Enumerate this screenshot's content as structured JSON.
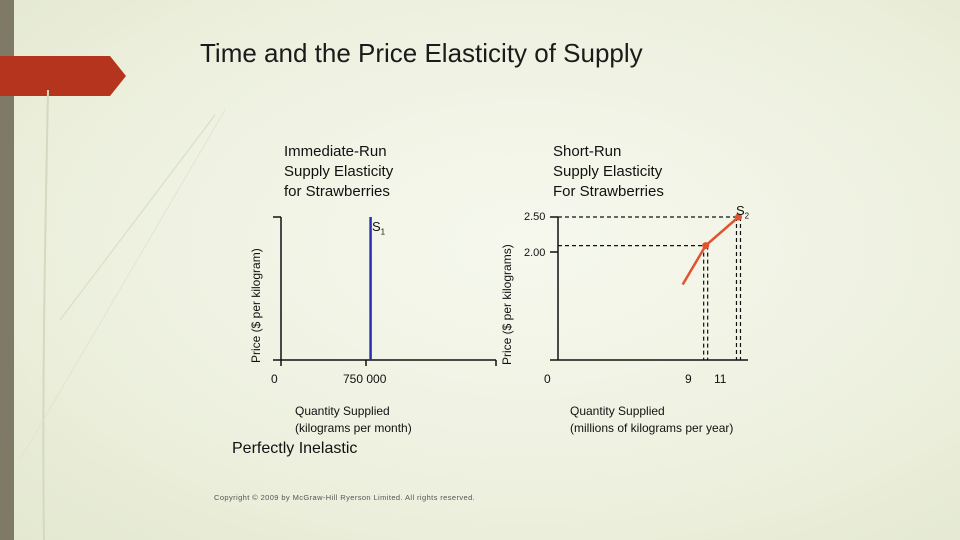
{
  "slide": {
    "title": "Time and the Price Elasticity of Supply",
    "subtitle": "Perfectly Inelastic",
    "copyright": "Copyright © 2009 by McGraw-Hill Ryerson Limited. All rights reserved.",
    "accent_color": "#b5341d",
    "sidebar_color": "#7f7a66"
  },
  "chart_data": [
    {
      "type": "line",
      "title": "Immediate-Run\nSupply Elasticity\nfor Strawberries",
      "ylabel": "Price ($ per kilogram)",
      "xlabel": "Quantity Supplied\n(kilograms per month)",
      "x_ticks": [
        "0",
        "750 000"
      ],
      "series": [
        {
          "name": "S1",
          "label_main": "S",
          "label_sub": "1",
          "color": "#2b2fb5",
          "x": [
            750000,
            750000
          ],
          "y": [
            0,
            2.6
          ]
        }
      ]
    },
    {
      "type": "line",
      "title": "Short-Run\nSupply Elasticity\nFor Strawberries",
      "ylabel": "Price ($ per kilograms)",
      "xlabel": "Quantity Supplied\n(millions of kilograms per year)",
      "x_ticks": [
        "0",
        "9",
        "11"
      ],
      "y_ticks": [
        "2.50",
        "2.00"
      ],
      "series": [
        {
          "name": "S2",
          "label_main": "S",
          "label_sub": "2",
          "color": "#e0532e",
          "x": [
            7.6,
            9,
            11
          ],
          "y": [
            1.32,
            2.0,
            2.5
          ]
        }
      ],
      "points": [
        {
          "x": 9,
          "y": 2.0
        },
        {
          "x": 11,
          "y": 2.5
        }
      ]
    }
  ]
}
